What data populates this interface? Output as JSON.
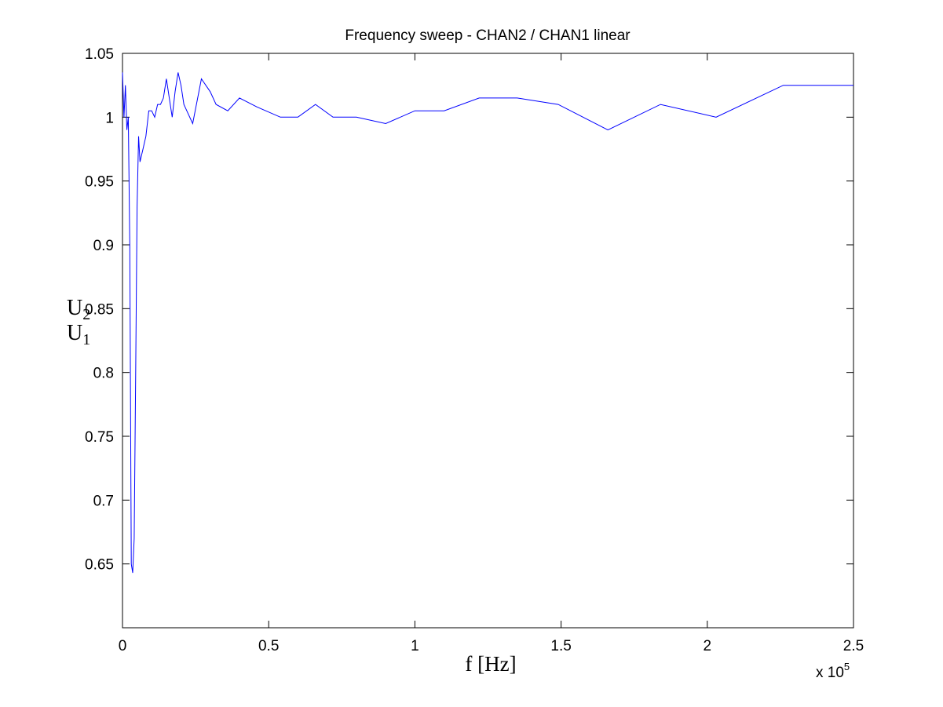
{
  "chart_data": {
    "type": "line",
    "title": "Frequency sweep - CHAN2 / CHAN1 linear",
    "xlabel": "f [Hz]",
    "ylabel_numerator": "U",
    "ylabel_numerator_sub": "2",
    "ylabel_denominator": "U",
    "ylabel_denominator_sub": "1",
    "x_multiplier_base": "x 10",
    "x_multiplier_exponent": "5",
    "xlim": [
      0,
      250000
    ],
    "ylim": [
      0.6,
      1.05
    ],
    "grid": false,
    "line_color": "#0000ff",
    "x_ticks": [
      {
        "value": 0,
        "label": "0"
      },
      {
        "value": 50000,
        "label": "0.5"
      },
      {
        "value": 100000,
        "label": "1"
      },
      {
        "value": 150000,
        "label": "1.5"
      },
      {
        "value": 200000,
        "label": "2"
      },
      {
        "value": 250000,
        "label": "2.5"
      }
    ],
    "y_ticks": [
      {
        "value": 0.65,
        "label": "0.65"
      },
      {
        "value": 0.7,
        "label": "0.7"
      },
      {
        "value": 0.75,
        "label": "0.75"
      },
      {
        "value": 0.8,
        "label": "0.8"
      },
      {
        "value": 0.85,
        "label": "0.85"
      },
      {
        "value": 0.9,
        "label": "0.9"
      },
      {
        "value": 0.95,
        "label": "0.95"
      },
      {
        "value": 1.0,
        "label": "1"
      },
      {
        "value": 1.05,
        "label": "1.05"
      }
    ],
    "series": [
      {
        "x": [
          0,
          500,
          1000,
          1500,
          2000,
          2500,
          3000,
          3500,
          4000,
          4500,
          5000,
          5500,
          6000,
          6500,
          7000,
          8000,
          9000,
          10000,
          11000,
          12000,
          13000,
          14000,
          15000,
          16000,
          17000,
          18000,
          19000,
          20000,
          21000,
          22000,
          24000,
          27000,
          30000,
          32000,
          36000,
          40000,
          46000,
          54000,
          60000,
          66000,
          72000,
          80000,
          90000,
          100000,
          110000,
          122000,
          135000,
          149000,
          166000,
          184000,
          203000,
          226000,
          250000
        ],
        "y": [
          1.035,
          1.0,
          1.025,
          0.99,
          1.0,
          0.9,
          0.65,
          0.643,
          0.67,
          0.8,
          0.93,
          0.985,
          0.965,
          0.97,
          0.975,
          0.985,
          1.005,
          1.005,
          1.0,
          1.01,
          1.01,
          1.015,
          1.03,
          1.015,
          1.0,
          1.02,
          1.035,
          1.025,
          1.01,
          1.005,
          0.995,
          1.03,
          1.02,
          1.01,
          1.005,
          1.015,
          1.008,
          1.0,
          1.0,
          1.01,
          1.0,
          1.0,
          0.995,
          1.005,
          1.005,
          1.015,
          1.015,
          1.01,
          0.99,
          1.01,
          1.0,
          1.025,
          1.025
        ]
      }
    ]
  }
}
